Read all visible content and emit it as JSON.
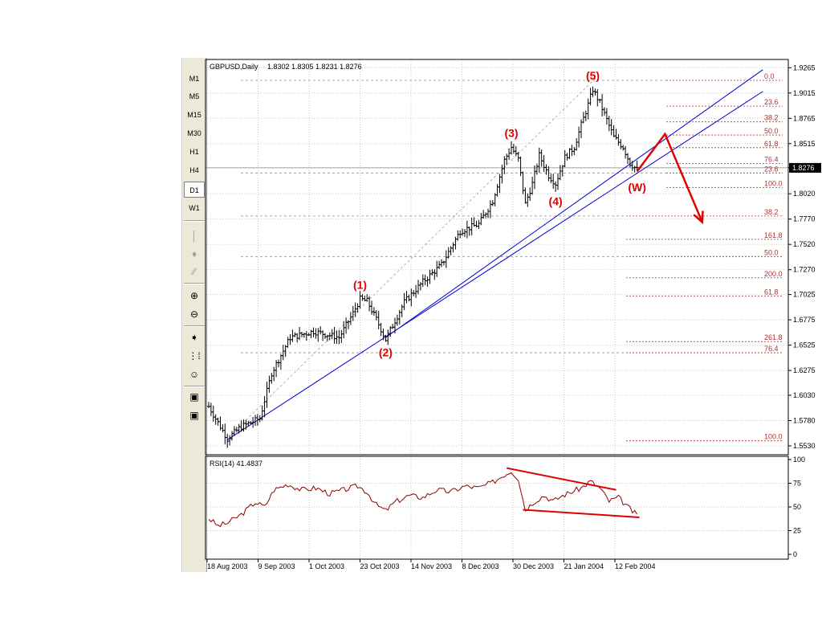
{
  "toolbar": {
    "timeframes": [
      "M1",
      "M5",
      "M15",
      "M30",
      "H1",
      "H4",
      "D1",
      "W1"
    ],
    "active_timeframe": "D1"
  },
  "header": {
    "symbol_label": "GBPUSD,Daily",
    "ohlc_values": "1.8302 1.8305 1.8231 1.8276"
  },
  "rsi_header": {
    "label": "RSI(14) 41.4837"
  },
  "chart_data": [
    {
      "type": "candlestick",
      "symbol": "GBPUSD",
      "timeframe": "Daily",
      "ylim": [
        1.553,
        1.9275
      ],
      "yticks": [
        "1.9265",
        "1.9015",
        "1.8765",
        "1.8515",
        "1.8276",
        "1.8020",
        "1.7770",
        "1.7520",
        "1.7270",
        "1.7025",
        "1.6775",
        "1.6525",
        "1.6275",
        "1.6030",
        "1.5780",
        "1.5530"
      ],
      "current_price": "1.8276",
      "xticks": [
        "18 Aug 2003",
        "9 Sep 2003",
        "1 Oct 2003",
        "23 Oct 2003",
        "14 Nov 2003",
        "8 Dec 2003",
        "30 Dec 2003",
        "21 Jan 2004",
        "12 Feb 2004"
      ],
      "price_path_anchors": [
        {
          "i": 0,
          "p": 1.592
        },
        {
          "i": 8,
          "p": 1.56
        },
        {
          "i": 14,
          "p": 1.572
        },
        {
          "i": 22,
          "p": 1.58
        },
        {
          "i": 27,
          "p": 1.625
        },
        {
          "i": 35,
          "p": 1.66
        },
        {
          "i": 45,
          "p": 1.666
        },
        {
          "i": 56,
          "p": 1.66
        },
        {
          "i": 62,
          "p": 1.684
        },
        {
          "i": 65,
          "p": 1.698
        },
        {
          "i": 68,
          "p": 1.696
        },
        {
          "i": 72,
          "p": 1.678
        },
        {
          "i": 76,
          "p": 1.658
        },
        {
          "i": 84,
          "p": 1.695
        },
        {
          "i": 92,
          "p": 1.715
        },
        {
          "i": 100,
          "p": 1.732
        },
        {
          "i": 108,
          "p": 1.765
        },
        {
          "i": 116,
          "p": 1.772
        },
        {
          "i": 122,
          "p": 1.795
        },
        {
          "i": 127,
          "p": 1.835
        },
        {
          "i": 130,
          "p": 1.848
        },
        {
          "i": 133,
          "p": 1.836
        },
        {
          "i": 136,
          "p": 1.792
        },
        {
          "i": 139,
          "p": 1.812
        },
        {
          "i": 142,
          "p": 1.84
        },
        {
          "i": 146,
          "p": 1.82
        },
        {
          "i": 149,
          "p": 1.812
        },
        {
          "i": 153,
          "p": 1.838
        },
        {
          "i": 157,
          "p": 1.848
        },
        {
          "i": 160,
          "p": 1.87
        },
        {
          "i": 163,
          "p": 1.89
        },
        {
          "i": 165,
          "p": 1.905
        },
        {
          "i": 168,
          "p": 1.892
        },
        {
          "i": 171,
          "p": 1.875
        },
        {
          "i": 174,
          "p": 1.858
        },
        {
          "i": 178,
          "p": 1.848
        },
        {
          "i": 181,
          "p": 1.832
        },
        {
          "i": 184,
          "p": 1.826
        }
      ],
      "wave_labels": [
        {
          "text": "(1)",
          "i": 65,
          "p": 1.708,
          "pos": "above"
        },
        {
          "text": "(2)",
          "i": 76,
          "p": 1.651,
          "pos": "below"
        },
        {
          "text": "(3)",
          "i": 130,
          "p": 1.858,
          "pos": "above"
        },
        {
          "text": "(4)",
          "i": 149,
          "p": 1.8,
          "pos": "below"
        },
        {
          "text": "(5)",
          "i": 165,
          "p": 1.915,
          "pos": "above"
        },
        {
          "text": "(W)",
          "i": 184,
          "p": 1.814,
          "pos": "below"
        }
      ],
      "fibonacci_levels": [
        {
          "label": "0.0",
          "p": 1.914
        },
        {
          "label": "23.6",
          "p": 1.8885
        },
        {
          "label": "38.2",
          "p": 1.873
        },
        {
          "label": "50.0",
          "p": 1.86
        },
        {
          "label": "61.8",
          "p": 1.8475
        },
        {
          "label": "76.4",
          "p": 1.832
        },
        {
          "label": "23.6",
          "p": 1.8225
        },
        {
          "label": "100.0",
          "p": 1.808
        },
        {
          "label": "38.2",
          "p": 1.78
        },
        {
          "label": "161.8",
          "p": 1.757
        },
        {
          "label": "50.0",
          "p": 1.74
        },
        {
          "label": "200.0",
          "p": 1.719
        },
        {
          "label": "61.8",
          "p": 1.701
        },
        {
          "label": "261.8",
          "p": 1.656
        },
        {
          "label": "76.4",
          "p": 1.645
        },
        {
          "label": "100.0",
          "p": 1.558
        }
      ],
      "trendlines": [
        {
          "from": {
            "i": 8,
            "p": 1.559
          },
          "to": {
            "i": 238,
            "p": 1.903
          }
        },
        {
          "from": {
            "i": 76,
            "p": 1.66
          },
          "to": {
            "i": 238,
            "p": 1.9245
          }
        },
        {
          "from": {
            "i": 10,
            "p": 1.565
          },
          "to": {
            "i": 167,
            "p": 1.918
          },
          "style": "dashed"
        }
      ],
      "forecast_arrow": [
        {
          "i": 184,
          "p": 1.824
        },
        {
          "i": 196,
          "p": 1.861
        },
        {
          "i": 212,
          "p": 1.774
        }
      ]
    },
    {
      "type": "line",
      "name": "RSI(14)",
      "value": "41.4837",
      "ylim": [
        0,
        100
      ],
      "yticks": [
        "100",
        "75",
        "50",
        "25",
        "0"
      ],
      "rsi_anchors": [
        {
          "i": 0,
          "v": 38
        },
        {
          "i": 4,
          "v": 30
        },
        {
          "i": 8,
          "v": 33
        },
        {
          "i": 14,
          "v": 42
        },
        {
          "i": 20,
          "v": 55
        },
        {
          "i": 24,
          "v": 50
        },
        {
          "i": 28,
          "v": 68
        },
        {
          "i": 34,
          "v": 74
        },
        {
          "i": 40,
          "v": 68
        },
        {
          "i": 46,
          "v": 70
        },
        {
          "i": 52,
          "v": 64
        },
        {
          "i": 58,
          "v": 68
        },
        {
          "i": 64,
          "v": 72
        },
        {
          "i": 68,
          "v": 66
        },
        {
          "i": 72,
          "v": 52
        },
        {
          "i": 76,
          "v": 46
        },
        {
          "i": 80,
          "v": 55
        },
        {
          "i": 86,
          "v": 62
        },
        {
          "i": 92,
          "v": 60
        },
        {
          "i": 98,
          "v": 68
        },
        {
          "i": 104,
          "v": 66
        },
        {
          "i": 110,
          "v": 72
        },
        {
          "i": 116,
          "v": 70
        },
        {
          "i": 122,
          "v": 76
        },
        {
          "i": 127,
          "v": 84
        },
        {
          "i": 130,
          "v": 88
        },
        {
          "i": 133,
          "v": 80
        },
        {
          "i": 136,
          "v": 47
        },
        {
          "i": 140,
          "v": 56
        },
        {
          "i": 144,
          "v": 62
        },
        {
          "i": 148,
          "v": 56
        },
        {
          "i": 152,
          "v": 62
        },
        {
          "i": 156,
          "v": 66
        },
        {
          "i": 160,
          "v": 70
        },
        {
          "i": 164,
          "v": 77
        },
        {
          "i": 168,
          "v": 70
        },
        {
          "i": 172,
          "v": 56
        },
        {
          "i": 176,
          "v": 60
        },
        {
          "i": 180,
          "v": 50
        },
        {
          "i": 184,
          "v": 41
        }
      ],
      "divergence_lines": [
        {
          "from": {
            "i": 128,
            "v": 91
          },
          "to": {
            "i": 175,
            "v": 68
          }
        },
        {
          "from": {
            "i": 135,
            "v": 47
          },
          "to": {
            "i": 185,
            "v": 39
          }
        }
      ]
    }
  ]
}
